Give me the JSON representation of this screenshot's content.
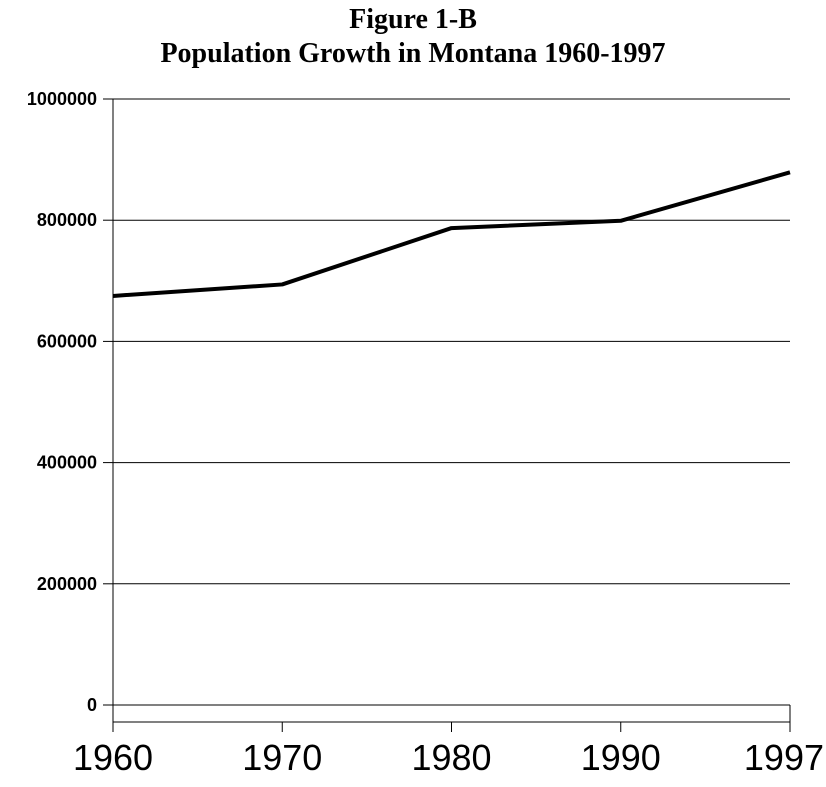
{
  "chart_data": {
    "type": "line",
    "title": "Figure 1-B",
    "subtitle": "Population Growth in Montana 1960-1997",
    "xlabel": "",
    "ylabel": "",
    "categories": [
      "1960",
      "1970",
      "1980",
      "1990",
      "1997"
    ],
    "values": [
      675000,
      694000,
      787000,
      799000,
      879000
    ],
    "ylim": [
      0,
      1000000
    ],
    "yticks": [
      "0",
      "200000",
      "400000",
      "600000",
      "800000",
      "1000000"
    ],
    "grid": true,
    "legend": "none",
    "line_color": "#000000"
  }
}
